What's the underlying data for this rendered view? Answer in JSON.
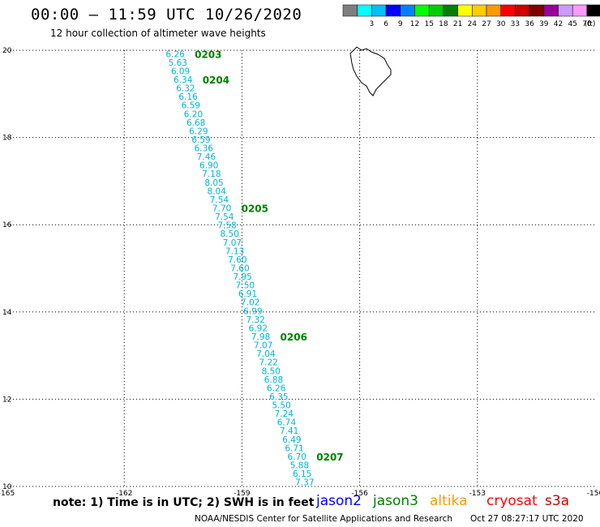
{
  "title": "00:00 – 11:59 UTC 10/26/2020",
  "subtitle": "12 hour collection of altimeter wave heights",
  "legend": {
    "unit": "(ft)",
    "bins": [
      {
        "label": "",
        "color": "#7f7f7f"
      },
      {
        "label": "3",
        "color": "#00ffff"
      },
      {
        "label": "6",
        "color": "#00bfff"
      },
      {
        "label": "9",
        "color": "#0000ff"
      },
      {
        "label": "12",
        "color": "#0080ff"
      },
      {
        "label": "15",
        "color": "#00ff00"
      },
      {
        "label": "18",
        "color": "#00cc00"
      },
      {
        "label": "21",
        "color": "#008000"
      },
      {
        "label": "24",
        "color": "#ffff00"
      },
      {
        "label": "27",
        "color": "#ffcc00"
      },
      {
        "label": "30",
        "color": "#ff9900"
      },
      {
        "label": "33",
        "color": "#ff0000"
      },
      {
        "label": "36",
        "color": "#cc0000"
      },
      {
        "label": "39",
        "color": "#800000"
      },
      {
        "label": "42",
        "color": "#990099"
      },
      {
        "label": "45",
        "color": "#cc99ff"
      },
      {
        "label": "70",
        "color": "#ff99ff"
      },
      {
        "label": "",
        "color": "#000000"
      }
    ]
  },
  "map": {
    "lon_range": [
      -165,
      -150
    ],
    "lat_range": [
      10,
      20
    ],
    "x_ticks": [
      "-165",
      "-162",
      "-159",
      "-156",
      "-153",
      "-150"
    ],
    "y_ticks": [
      "20",
      "18",
      "16",
      "14",
      "12",
      "10"
    ],
    "wave_color": "#00b4d8",
    "time_color": "#008000",
    "track_start": {
      "lon": -160.7,
      "lat": 19.92
    },
    "track_end": {
      "lon": -157.4,
      "lat": 10.1
    },
    "wave_heights": [
      "6.26",
      "5.63",
      "6.09",
      "6.34",
      "6.32",
      "6.16",
      "6.59",
      "6.20",
      "6.68",
      "6.29",
      "6.59",
      "6.36",
      "7.46",
      "6.90",
      "7.18",
      "8.05",
      "8.04",
      "7.54",
      "7.70",
      "7.54",
      "7.58",
      "8.50",
      "7.07",
      "7.13",
      "7.60",
      "7.60",
      "7.95",
      "7.50",
      "6.91",
      "7.02",
      "6.99",
      "7.32",
      "6.92",
      "7.98",
      "7.07",
      "7.04",
      "7.22",
      "8.50",
      "6.88",
      "6.26",
      "6.35",
      "5.50",
      "7.24",
      "6.74",
      "7.41",
      "6.49",
      "6.71",
      "6.70",
      "5.88",
      "6.15",
      "7.37"
    ],
    "time_labels": [
      {
        "label": "0203",
        "index": 0
      },
      {
        "label": "0204",
        "index": 3
      },
      {
        "label": "0205",
        "index": 18
      },
      {
        "label": "0206",
        "index": 33
      },
      {
        "label": "0207",
        "index": 47
      }
    ]
  },
  "note": "note:  1) Time is in UTC;  2) SWH is in feet",
  "satellites": [
    {
      "name": "jason2",
      "color": "#0000ff"
    },
    {
      "name": "jason3",
      "color": "#008000"
    },
    {
      "name": "altika",
      "color": "#ff9900"
    },
    {
      "name": "cryosat",
      "color": "#ff0000"
    },
    {
      "name": "s3a",
      "color": "#cc0000"
    }
  ],
  "credit": "NOAA/NESDIS Center for Satellite Applications and Research",
  "generated": "Oct 27 08:27:17 UTC 2020"
}
